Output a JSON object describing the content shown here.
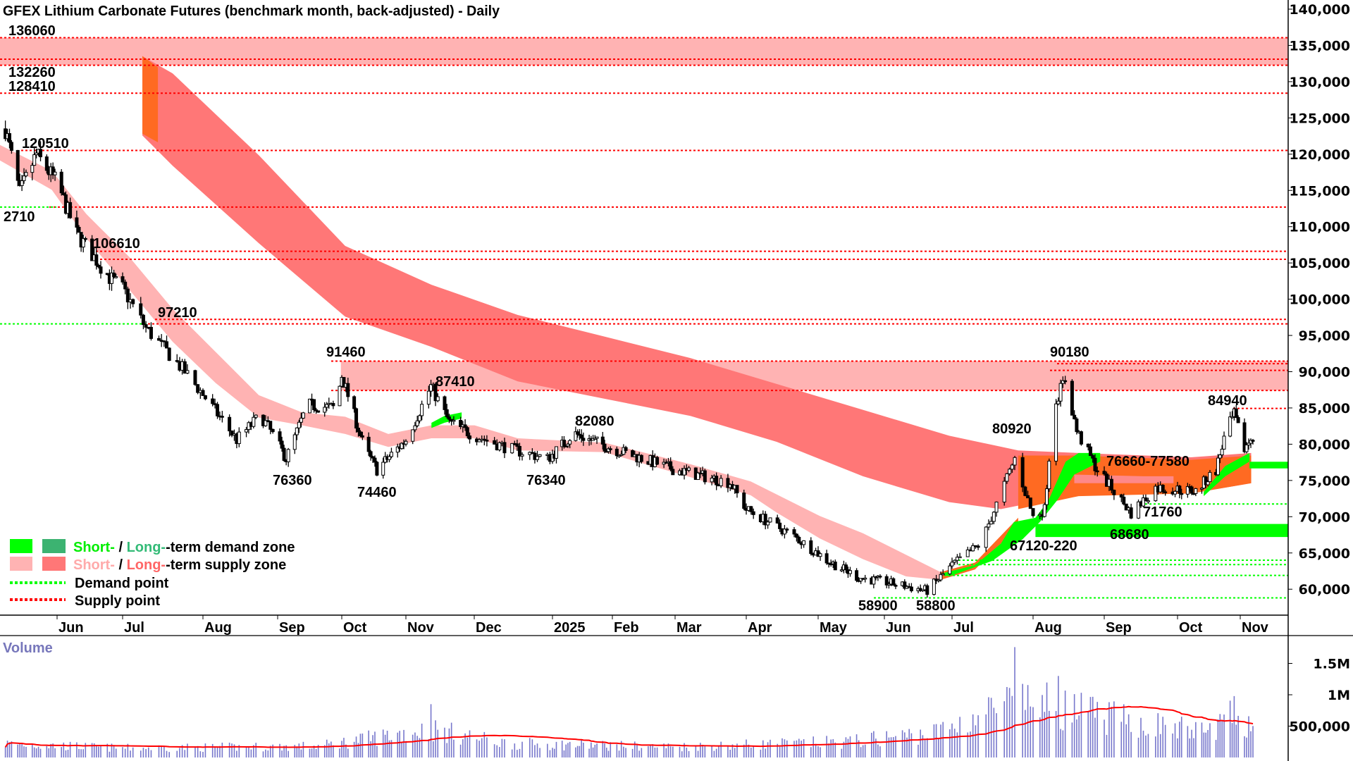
{
  "chart_data": {
    "type": "candlestick",
    "title": "GFEX Lithium Carbonate Futures (benchmark month, back-adjusted) - Daily",
    "ylim": [
      57000,
      141000
    ],
    "y_ticks": [
      "140,000",
      "135,000",
      "130,000",
      "125,000",
      "120,000",
      "115,000",
      "110,000",
      "105,000",
      "100,000",
      "95,000",
      "90,000",
      "85,000",
      "80,000",
      "75,000",
      "70,000",
      "65,000",
      "60,000"
    ],
    "y_tick_values": [
      140000,
      135000,
      130000,
      125000,
      120000,
      115000,
      110000,
      105000,
      100000,
      95000,
      90000,
      85000,
      80000,
      75000,
      70000,
      65000,
      60000
    ],
    "x_labels": [
      {
        "date": "2024-06-01",
        "label": "Jun"
      },
      {
        "date": "2024-07-01",
        "label": "Jul"
      },
      {
        "date": "2024-08-01",
        "label": "Aug"
      },
      {
        "date": "2024-09-01",
        "label": "Sep"
      },
      {
        "date": "2024-10-01",
        "label": "Oct"
      },
      {
        "date": "2024-11-01",
        "label": "Nov"
      },
      {
        "date": "2024-12-01",
        "label": "Dec"
      },
      {
        "date": "2025-01-01",
        "label": "2025"
      },
      {
        "date": "2025-02-01",
        "label": "Feb"
      },
      {
        "date": "2025-03-01",
        "label": "Mar"
      },
      {
        "date": "2025-04-01",
        "label": "Apr"
      },
      {
        "date": "2025-05-01",
        "label": "May"
      },
      {
        "date": "2025-06-01",
        "label": "Jun"
      },
      {
        "date": "2025-07-01",
        "label": "Jul"
      },
      {
        "date": "2025-08-01",
        "label": "Aug"
      },
      {
        "date": "2025-09-01",
        "label": "Sep"
      },
      {
        "date": "2025-10-01",
        "label": "Oct"
      },
      {
        "date": "2025-11-01",
        "label": "Nov"
      }
    ],
    "close_path": [
      [
        "2024-05-07",
        123500
      ],
      [
        "2024-05-14",
        114600
      ],
      [
        "2024-05-22",
        120000
      ],
      [
        "2024-06-01",
        116000
      ],
      [
        "2024-06-10",
        109000
      ],
      [
        "2024-06-25",
        103000
      ],
      [
        "2024-07-01",
        101500
      ],
      [
        "2024-07-10",
        96000
      ],
      [
        "2024-07-25",
        90000
      ],
      [
        "2024-08-15",
        80600
      ],
      [
        "2024-08-25",
        84000
      ],
      [
        "2024-09-05",
        78000
      ],
      [
        "2024-09-15",
        85400
      ],
      [
        "2024-09-28",
        85000
      ],
      [
        "2024-10-01",
        89500
      ],
      [
        "2024-10-12",
        79400
      ],
      [
        "2024-10-18",
        76500
      ],
      [
        "2024-11-01",
        80600
      ],
      [
        "2024-11-12",
        88000
      ],
      [
        "2024-11-20",
        83000
      ],
      [
        "2024-12-01",
        81200
      ],
      [
        "2024-12-15",
        79400
      ],
      [
        "2024-12-30",
        78000
      ],
      [
        "2025-01-12",
        81500
      ],
      [
        "2025-02-01",
        79400
      ],
      [
        "2025-03-01",
        76500
      ],
      [
        "2025-03-25",
        74700
      ],
      [
        "2025-04-01",
        71000
      ],
      [
        "2025-04-20",
        67500
      ],
      [
        "2025-05-05",
        64000
      ],
      [
        "2025-05-20",
        61600
      ],
      [
        "2025-06-01",
        61000
      ],
      [
        "2025-06-20",
        59800
      ],
      [
        "2025-07-01",
        63300
      ],
      [
        "2025-07-12",
        66300
      ],
      [
        "2025-07-20",
        73500
      ],
      [
        "2025-07-25",
        78000
      ],
      [
        "2025-08-01",
        70000
      ],
      [
        "2025-08-06",
        71000
      ],
      [
        "2025-08-10",
        85400
      ],
      [
        "2025-08-15",
        89000
      ],
      [
        "2025-08-20",
        81800
      ],
      [
        "2025-08-28",
        77000
      ],
      [
        "2025-09-05",
        73500
      ],
      [
        "2025-09-12",
        70500
      ],
      [
        "2025-09-22",
        74000
      ],
      [
        "2025-10-10",
        73500
      ],
      [
        "2025-10-20",
        76500
      ],
      [
        "2025-10-25",
        81800
      ],
      [
        "2025-10-29",
        84000
      ],
      [
        "2025-11-03",
        79400
      ],
      [
        "2025-11-07",
        81200
      ]
    ],
    "supply_points": [
      136060,
      133100,
      132260,
      128410,
      120510,
      112710,
      106610,
      105500,
      97210,
      96600,
      91460,
      91100,
      90180,
      87410,
      84940
    ],
    "demand_points": [
      71760,
      64000,
      63400,
      61900,
      58800
    ],
    "supply_zones": [
      [
        132260,
        136060
      ],
      [
        87410,
        91460
      ]
    ],
    "demand_zones": [
      [
        67120,
        68680
      ],
      [
        76660,
        77580
      ]
    ],
    "annotations": [
      "136060",
      "132260",
      "128410",
      "120510",
      "2710",
      "106610",
      "97210",
      "91460",
      "76360",
      "74460",
      "87410",
      "82080",
      "76340",
      "58900",
      "58800",
      "80920",
      "67120-220",
      "90180",
      "76660-77580",
      "71760",
      "68680",
      "84940"
    ],
    "volume": {
      "label": "Volume",
      "y_ticks": [
        "1.5M",
        "1M",
        "500,000"
      ],
      "y_tick_values": [
        1500000,
        1000000,
        500000
      ],
      "profile": [
        [
          "2024-05-07",
          220000
        ],
        [
          "2024-07-01",
          150000
        ],
        [
          "2024-09-20",
          180000
        ],
        [
          "2024-11-12",
          450000
        ],
        [
          "2024-12-15",
          220000
        ],
        [
          "2025-03-01",
          170000
        ],
        [
          "2025-05-15",
          250000
        ],
        [
          "2025-06-25",
          400000
        ],
        [
          "2025-07-25",
          900000
        ],
        [
          "2025-08-12",
          800000
        ],
        [
          "2025-09-15",
          550000
        ],
        [
          "2025-10-15",
          400000
        ],
        [
          "2025-10-30",
          700000
        ],
        [
          "2025-11-07",
          450000
        ]
      ]
    },
    "colors": {
      "short_demand": "#00ff00",
      "long_demand": "#3cb371",
      "short_supply": "#ffb3b3",
      "long_supply": "#ff7777",
      "overlap": "#ff6a22",
      "volume": "#7777cc",
      "volume_ma": "#ff0000"
    }
  },
  "legend": {
    "demand_short": "Short-",
    "sep1": " / ",
    "demand_long": "Long-",
    "demand_rest": "-term demand zone",
    "supply_short": "Short-",
    "sep2": " / ",
    "supply_long": "Long-",
    "supply_rest": "-term supply zone",
    "demand_point": "Demand point",
    "supply_point": "Supply point"
  }
}
